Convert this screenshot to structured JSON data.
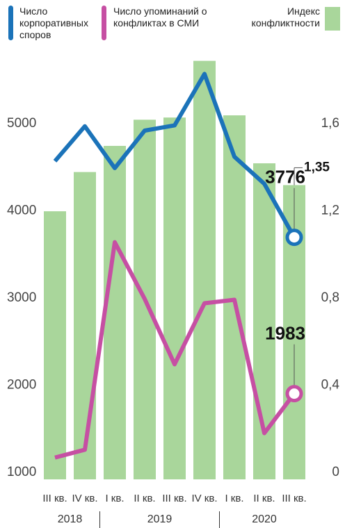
{
  "chart_data": {
    "type": "bar_line",
    "categories": [
      "III кв.",
      "IV кв.",
      "I кв.",
      "II кв.",
      "III кв.",
      "IV кв.",
      "I кв.",
      "II кв.",
      "III кв."
    ],
    "x_groups": [
      {
        "label": "2018",
        "count": 2
      },
      {
        "label": "2019",
        "count": 4
      },
      {
        "label": "2020",
        "count": 3
      }
    ],
    "series": [
      {
        "name": "Число корпоративных споров",
        "color": "#1b73b9",
        "type": "line",
        "axis": "y",
        "values": [
          4650,
          5050,
          4570,
          5000,
          5060,
          5650,
          4700,
          4390,
          3776
        ],
        "value_labels": [
          null,
          null,
          null,
          null,
          null,
          null,
          null,
          null,
          "3776"
        ]
      },
      {
        "name": "Число упоминаний о конфликтах в СМИ",
        "color": "#c64fa3",
        "type": "line",
        "axis": "y",
        "values": [
          1250,
          1340,
          3720,
          3070,
          2320,
          3020,
          3060,
          1530,
          1983
        ],
        "value_labels": [
          null,
          null,
          null,
          null,
          null,
          null,
          null,
          null,
          "1983"
        ]
      },
      {
        "name": "Индекс конфликтности",
        "color": "#a9d69b",
        "type": "bar",
        "axis": "y2",
        "values": [
          1.23,
          1.41,
          1.53,
          1.65,
          1.66,
          1.92,
          1.67,
          1.45,
          1.35
        ],
        "value_labels": [
          null,
          null,
          null,
          null,
          null,
          null,
          null,
          null,
          "1,35"
        ]
      }
    ],
    "ylim": [
      1000,
      5800
    ],
    "yticks": [
      1000,
      2000,
      3000,
      4000,
      5000
    ],
    "y2lim": [
      0,
      1.92
    ],
    "y2ticks": [
      0,
      {
        "value": 0.4,
        "label": "0,4"
      },
      {
        "value": 0.8,
        "label": "0,8"
      },
      {
        "value": 1.2,
        "label": "1,2"
      },
      {
        "value": 1.6,
        "label": "1,6"
      }
    ]
  }
}
